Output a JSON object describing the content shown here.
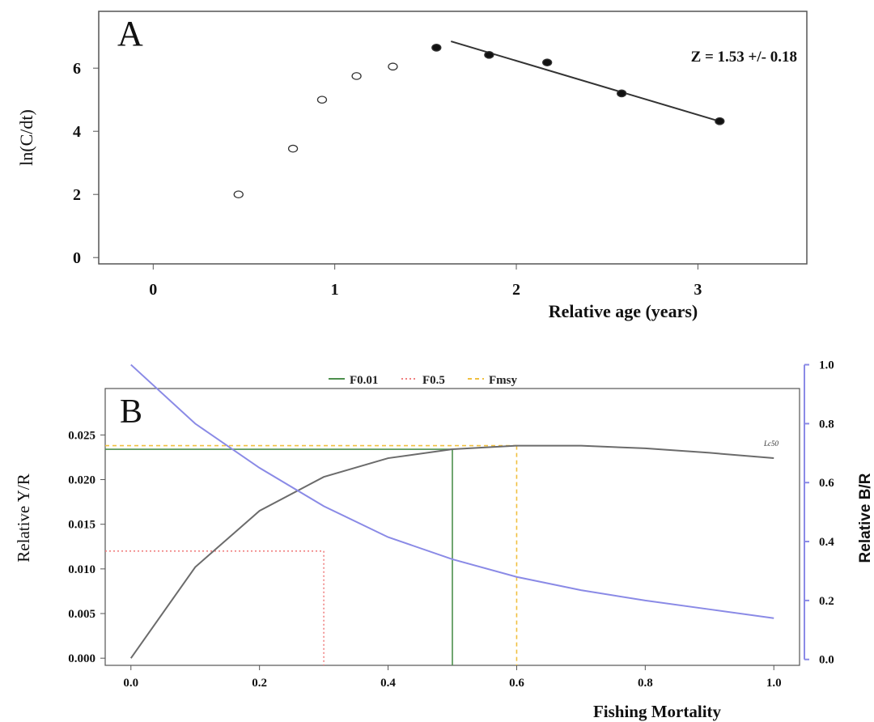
{
  "chart_data": [
    {
      "type": "scatter",
      "panel_label": "A",
      "xlabel": "Relative age (years)",
      "ylabel": "ln(C/dt)",
      "xlim": [
        -0.3,
        3.6
      ],
      "ylim": [
        -0.2,
        7.8
      ],
      "x_ticks": [
        0,
        1,
        2,
        3
      ],
      "y_ticks": [
        0,
        2,
        4,
        6
      ],
      "annotation": "Z = 1.53 +/- 0.18",
      "series": [
        {
          "marker": "open",
          "x": [
            0.47,
            0.77,
            0.93,
            1.12,
            1.32
          ],
          "y": [
            2.0,
            3.45,
            5.0,
            5.75,
            6.05
          ]
        },
        {
          "marker": "filled",
          "x": [
            1.56,
            1.85,
            2.17,
            2.58,
            3.12
          ],
          "y": [
            6.65,
            6.42,
            6.18,
            5.2,
            4.32
          ]
        }
      ],
      "fit_line": {
        "x": [
          1.64,
          3.1
        ],
        "y": [
          6.85,
          4.35
        ]
      }
    },
    {
      "type": "line",
      "panel_label": "B",
      "xlabel": "Fishing Mortality",
      "ylabel_left": "Relative Y/R",
      "ylabel_right": "Relative B/R",
      "xlim": [
        -0.04,
        1.04
      ],
      "ylim_left": [
        -0.0008,
        0.0302
      ],
      "ylim_right": [
        -0.02,
        1.04
      ],
      "x_ticks": [
        0.0,
        0.2,
        0.4,
        0.6,
        0.8,
        1.0
      ],
      "y_ticks_left": [
        0.0,
        0.005,
        0.01,
        0.015,
        0.02,
        0.025
      ],
      "y_ticks_right": [
        0.0,
        0.2,
        0.4,
        0.6,
        0.8,
        1.0
      ],
      "legend": [
        "F0.01",
        "F0.5",
        "Fmsy"
      ],
      "legend_position": "top",
      "curve_label": "Lc50",
      "yr_curve": {
        "x": [
          0.0,
          0.1,
          0.2,
          0.3,
          0.4,
          0.5,
          0.6,
          0.7,
          0.8,
          0.9,
          1.0
        ],
        "y": [
          0.0,
          0.0102,
          0.0165,
          0.0203,
          0.0224,
          0.0234,
          0.0238,
          0.0238,
          0.0235,
          0.023,
          0.0224
        ]
      },
      "br_curve": {
        "x": [
          0.0,
          0.1,
          0.2,
          0.3,
          0.4,
          0.5,
          0.6,
          0.7,
          0.8,
          0.9,
          1.0
        ],
        "y": [
          1.0,
          0.8,
          0.65,
          0.52,
          0.415,
          0.34,
          0.28,
          0.235,
          0.2,
          0.17,
          0.14
        ]
      },
      "reference_points": [
        {
          "name": "F0.01",
          "x": 0.5,
          "y": 0.0234,
          "color": "#4d8f4d"
        },
        {
          "name": "F0.5",
          "x": 0.3,
          "y": 0.012,
          "color": "#f08080"
        },
        {
          "name": "Fmsy",
          "x": 0.6,
          "y": 0.0238,
          "color": "#f0c040"
        }
      ]
    }
  ]
}
